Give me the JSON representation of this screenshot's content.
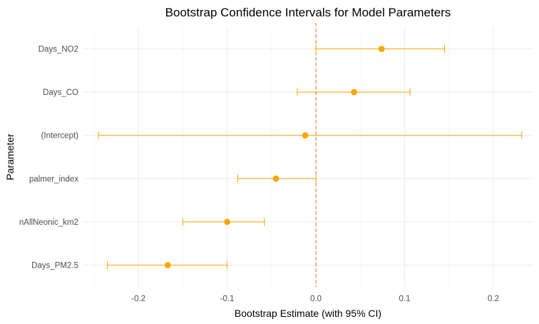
{
  "chart_data": {
    "type": "errorbar",
    "title": "Bootstrap Confidence Intervals for Model Parameters",
    "xlabel": "Bootstrap Estimate (with 95% CI)",
    "ylabel": "Parameter",
    "xlim": [
      -0.262,
      0.245
    ],
    "x_ticks": [
      -0.2,
      -0.1,
      0.0,
      0.1,
      0.2
    ],
    "x_tick_labels": [
      "-0.2",
      "-0.1",
      "0.0",
      "0.1",
      "0.2"
    ],
    "reference_line": 0.0,
    "grid": true,
    "color": "#FFA500",
    "ref_line_color": "#E8803A",
    "categories": [
      "Days_NO2",
      "Days_CO",
      "(Intercept)",
      "palmer_index",
      "nAllNeonic_km2",
      "Days_PM2.5"
    ],
    "estimates": [
      0.074,
      0.043,
      -0.012,
      -0.045,
      -0.1,
      -0.167
    ],
    "lower": [
      0.0,
      -0.021,
      -0.245,
      -0.088,
      -0.15,
      -0.235
    ],
    "upper": [
      0.145,
      0.106,
      0.232,
      0.0,
      -0.058,
      -0.1
    ]
  }
}
